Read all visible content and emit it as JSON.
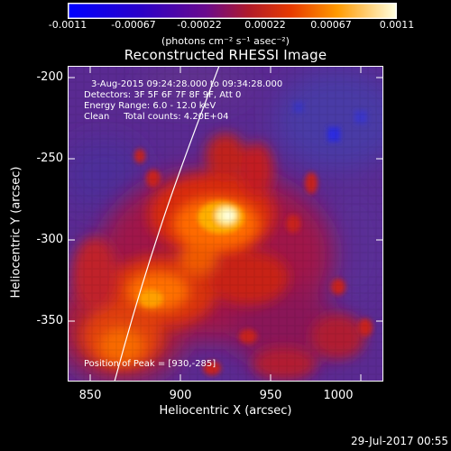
{
  "colorbar": {
    "ticks": [
      "-0.0011",
      "-0.00067",
      "-0.00022",
      "0.00022",
      "0.00067",
      "0.0011"
    ],
    "units": "(photons cm⁻² s⁻¹ asec⁻²)"
  },
  "title": "Reconstructed RHESSI Image",
  "annotations": {
    "time": "3-Aug-2015 09:24:28.000 to 09:34:28.000",
    "detectors": "Detectors: 3F 5F 6F 7F 8F 9F, Att 0",
    "energy": "Energy Range: 6.0 - 12.0 keV",
    "clean": "Clean     Total counts: 4.20E+04",
    "peak": "Position of Peak = [930,-285]"
  },
  "axes": {
    "xlabel": "Heliocentric X (arcsec)",
    "ylabel": "Heliocentric Y (arcsec)",
    "xticks": [
      "850",
      "900",
      "950",
      "1000"
    ],
    "yticks": [
      "-200",
      "-250",
      "-300",
      "-350"
    ]
  },
  "footer": "29-Jul-2017 00:55"
}
